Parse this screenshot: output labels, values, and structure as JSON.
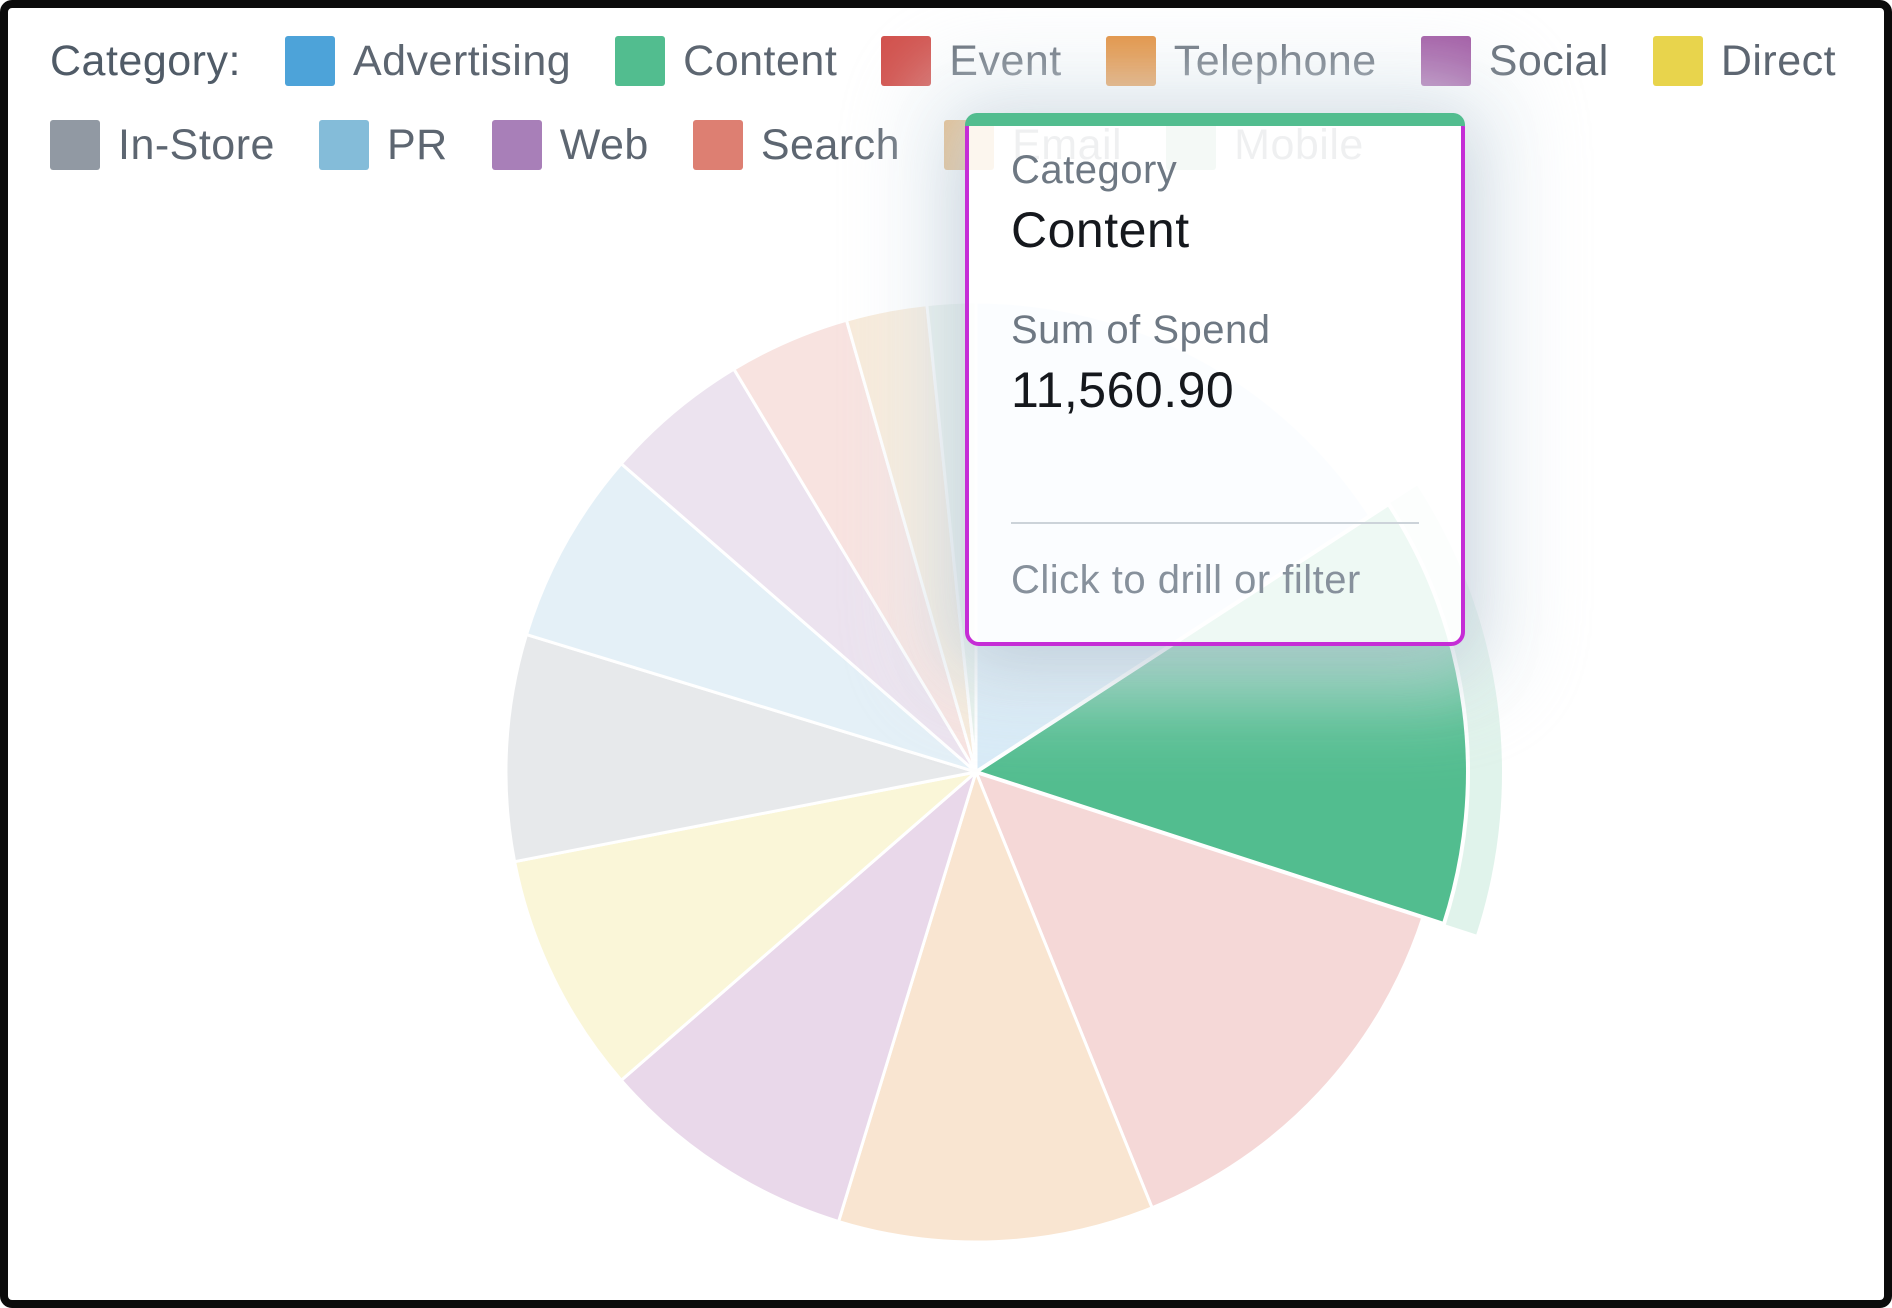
{
  "legend": {
    "title": "Category:",
    "items": [
      {
        "label": "Advertising",
        "color": "#4da3d9",
        "row": 1
      },
      {
        "label": "Content",
        "color": "#52bd8f",
        "row": 1
      },
      {
        "label": "Event",
        "color": "#d14f4a",
        "row": 1
      },
      {
        "label": "Telephone",
        "color": "#e2882f",
        "row": 1
      },
      {
        "label": "Social",
        "color": "#9c4f9e",
        "row": 1
      },
      {
        "label": "Direct",
        "color": "#e8d44c",
        "row": 1
      },
      {
        "label": "In-Store",
        "color": "#9199a3",
        "row": 2
      },
      {
        "label": "PR",
        "color": "#84bcd9",
        "row": 2
      },
      {
        "label": "Web",
        "color": "#a87fb8",
        "row": 2
      },
      {
        "label": "Search",
        "color": "#dd7f72",
        "row": 2
      },
      {
        "label": "Email",
        "color": "#e0a357",
        "row": 2
      },
      {
        "label": "Mobile",
        "color": "#8bbd9e",
        "row": 2
      }
    ]
  },
  "tooltip": {
    "dimension_label": "Category",
    "dimension_value": "Content",
    "measure_label": "Sum of Spend",
    "measure_value": "11,560.90",
    "hint": "Click to drill or filter",
    "accent_color": "#52bd8f",
    "border_color": "#c52dd6"
  },
  "chart_data": {
    "type": "pie",
    "dimension": "Category",
    "measure": "Sum of Spend",
    "selected_slice": "Content",
    "selected_value": 11560.9,
    "legend_position": "top",
    "categories": [
      "Advertising",
      "Content",
      "Event",
      "Telephone",
      "Social",
      "Direct",
      "In-Store",
      "PR",
      "Web",
      "Search",
      "Email",
      "Mobile"
    ],
    "slices": [
      {
        "name": "Advertising",
        "color": "#4da3d9",
        "start_deg": 0,
        "end_deg": 57,
        "share_pct_est": 15.8,
        "state": "faded"
      },
      {
        "name": "Content",
        "color": "#52bd8f",
        "start_deg": 57,
        "end_deg": 108,
        "share_pct_est": 14.2,
        "state": "highlighted",
        "sum_of_spend": 11560.9
      },
      {
        "name": "Event",
        "color": "#d14f4a",
        "start_deg": 108,
        "end_deg": 158,
        "share_pct_est": 13.9,
        "state": "faded"
      },
      {
        "name": "Telephone",
        "color": "#e2882f",
        "start_deg": 158,
        "end_deg": 197,
        "share_pct_est": 10.8,
        "state": "faded"
      },
      {
        "name": "Social",
        "color": "#9c4f9e",
        "start_deg": 197,
        "end_deg": 229,
        "share_pct_est": 8.9,
        "state": "faded"
      },
      {
        "name": "Direct",
        "color": "#e8d44c",
        "start_deg": 229,
        "end_deg": 259,
        "share_pct_est": 8.3,
        "state": "faded"
      },
      {
        "name": "In-Store",
        "color": "#9199a3",
        "start_deg": 259,
        "end_deg": 287,
        "share_pct_est": 7.8,
        "state": "faded"
      },
      {
        "name": "PR",
        "color": "#84bcd9",
        "start_deg": 287,
        "end_deg": 311,
        "share_pct_est": 6.7,
        "state": "faded"
      },
      {
        "name": "Web",
        "color": "#a87fb8",
        "start_deg": 311,
        "end_deg": 329,
        "share_pct_est": 5.0,
        "state": "faded"
      },
      {
        "name": "Search",
        "color": "#dd7f72",
        "start_deg": 329,
        "end_deg": 344,
        "share_pct_est": 4.2,
        "state": "faded"
      },
      {
        "name": "Email",
        "color": "#e0a357",
        "start_deg": 344,
        "end_deg": 354,
        "share_pct_est": 2.8,
        "state": "faded"
      },
      {
        "name": "Mobile",
        "color": "#8bbd9e",
        "start_deg": 354,
        "end_deg": 360,
        "share_pct_est": 1.7,
        "state": "faded"
      }
    ]
  }
}
